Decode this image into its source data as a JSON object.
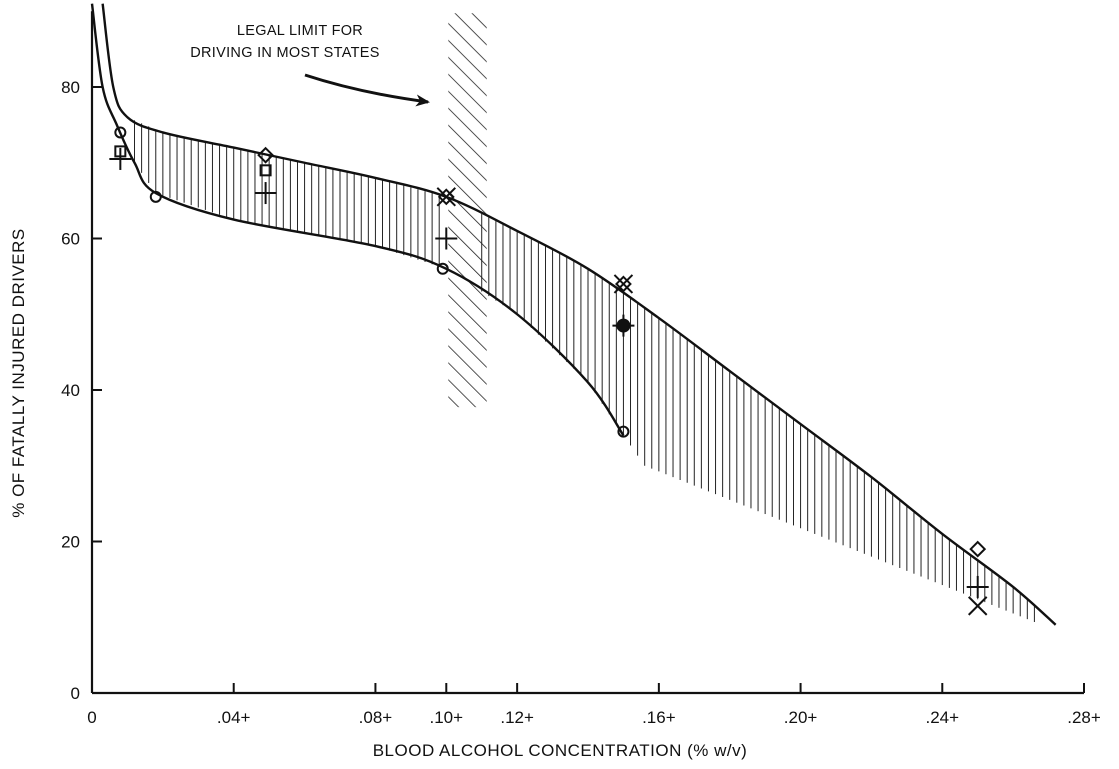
{
  "chart_data": {
    "type": "line",
    "title": "",
    "xlabel": "BLOOD ALCOHOL CONCENTRATION (% w/v)",
    "ylabel": "% OF FATALLY INJURED DRIVERS",
    "xlim": [
      0,
      0.28
    ],
    "ylim": [
      0,
      90
    ],
    "x_ticks": [
      {
        "value": 0,
        "label": "0"
      },
      {
        "value": 0.04,
        "label": ".04+"
      },
      {
        "value": 0.08,
        "label": ".08+"
      },
      {
        "value": 0.1,
        "label": ".10+"
      },
      {
        "value": 0.12,
        "label": ".12+"
      },
      {
        "value": 0.16,
        "label": ".16+"
      },
      {
        "value": 0.2,
        "label": ".20+"
      },
      {
        "value": 0.24,
        "label": ".24+"
      },
      {
        "value": 0.28,
        "label": ".28+"
      }
    ],
    "y_ticks": [
      {
        "value": 0,
        "label": "0"
      },
      {
        "value": 20,
        "label": "20"
      },
      {
        "value": 40,
        "label": "40"
      },
      {
        "value": 60,
        "label": "60"
      },
      {
        "value": 80,
        "label": "80"
      }
    ],
    "grid": false,
    "band": {
      "upper": [
        [
          0.003,
          91
        ],
        [
          0.006,
          80
        ],
        [
          0.01,
          76
        ],
        [
          0.02,
          74
        ],
        [
          0.04,
          72
        ],
        [
          0.06,
          70
        ],
        [
          0.08,
          68
        ],
        [
          0.1,
          65.5
        ],
        [
          0.12,
          61
        ],
        [
          0.14,
          56
        ],
        [
          0.16,
          49.5
        ],
        [
          0.18,
          42.5
        ],
        [
          0.2,
          35.5
        ],
        [
          0.22,
          28.5
        ],
        [
          0.24,
          21
        ],
        [
          0.26,
          14
        ],
        [
          0.272,
          9
        ]
      ],
      "lower": [
        [
          0.0,
          91
        ],
        [
          0.003,
          80
        ],
        [
          0.007,
          75
        ],
        [
          0.012,
          70
        ],
        [
          0.018,
          66
        ],
        [
          0.04,
          62.5
        ],
        [
          0.08,
          59
        ],
        [
          0.1,
          56
        ],
        [
          0.12,
          50
        ],
        [
          0.14,
          41
        ],
        [
          0.15,
          34
        ]
      ],
      "lower_extension": [
        [
          0.15,
          34
        ],
        [
          0.156,
          30
        ]
      ],
      "right_end": [
        [
          0.258,
          11
        ],
        [
          0.27,
          10
        ]
      ]
    },
    "legal_limit_band": {
      "x_start": 0.1,
      "x_end": 0.11,
      "y_bottom": 38,
      "y_top": 90
    },
    "series": [
      {
        "marker": "circle",
        "points": [
          [
            0.008,
            74
          ],
          [
            0.018,
            65.5
          ],
          [
            0.099,
            56
          ],
          [
            0.15,
            34.5
          ]
        ]
      },
      {
        "marker": "square",
        "points": [
          [
            0.008,
            71.5
          ],
          [
            0.049,
            69
          ]
        ]
      },
      {
        "marker": "plus",
        "points": [
          [
            0.008,
            70.5
          ],
          [
            0.049,
            66
          ],
          [
            0.1,
            60
          ],
          [
            0.15,
            48.5
          ],
          [
            0.25,
            14
          ]
        ]
      },
      {
        "marker": "diamond",
        "points": [
          [
            0.049,
            71
          ],
          [
            0.1,
            65.5
          ],
          [
            0.15,
            54
          ],
          [
            0.25,
            19
          ]
        ]
      },
      {
        "marker": "x",
        "points": [
          [
            0.1,
            65.5
          ],
          [
            0.15,
            54
          ],
          [
            0.25,
            11.5
          ]
        ]
      },
      {
        "marker": "filled-circle",
        "points": [
          [
            0.15,
            48.5
          ]
        ]
      }
    ],
    "annotations": [
      {
        "lines": [
          "LEGAL LIMIT FOR",
          "DRIVING IN MOST STATES"
        ]
      }
    ]
  }
}
